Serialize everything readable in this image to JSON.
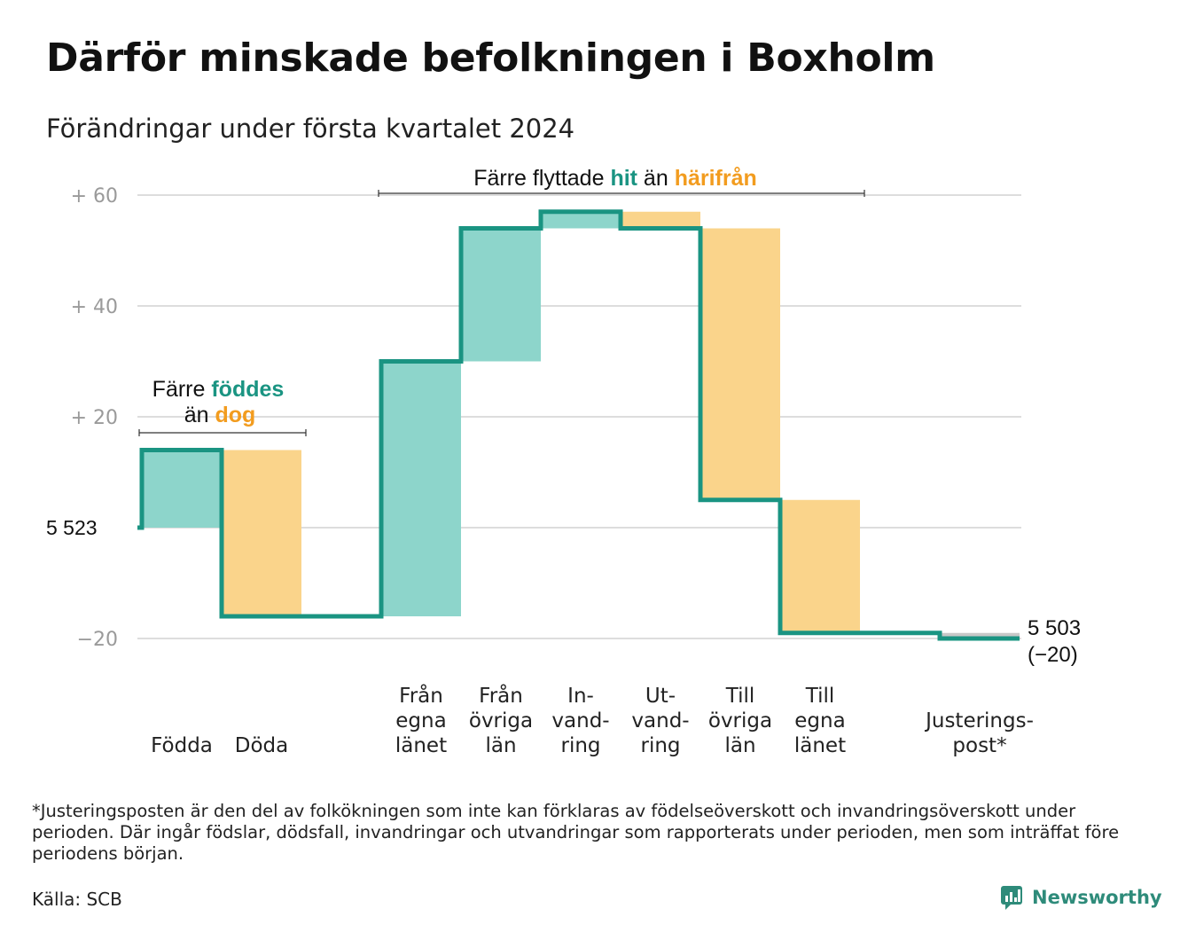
{
  "title": "Därför minskade befolkningen i Boxholm",
  "subtitle": "Förändringar under första kvartalet 2024",
  "footnote": "*Justeringsposten är den del av folkökningen som inte kan förklaras av födelseöverskott och invandringsöverskott under perioden. Där ingår födslar, dödsfall, invandringar och utvandringar som rapporterats under perioden, men som inträffat före periodens början.",
  "source": "Källa: SCB",
  "brand": "Newsworthy",
  "colors": {
    "increase": "#8dd5cb",
    "decrease": "#fad48b",
    "line": "#1a9482",
    "teal_text": "#1a9482",
    "orange_text": "#f29c1f",
    "grid": "#dddddd",
    "tick": "#9a9a9a",
    "adjustment": "#c8c8c8"
  },
  "chart_data": {
    "type": "waterfall",
    "start_label": "5  523",
    "start_value": 5523,
    "end_value": 5503,
    "end_label_line1": "5 503",
    "end_label_line2": "(−20)",
    "ylim": [
      -20,
      60
    ],
    "yticks": [
      {
        "value": 60,
        "label": "+  60"
      },
      {
        "value": 40,
        "label": "+  40"
      },
      {
        "value": 20,
        "label": "+  20"
      },
      {
        "value": 0,
        "label": ""
      },
      {
        "value": -20,
        "label": "−20"
      }
    ],
    "steps": [
      {
        "lines": [
          "Födda"
        ],
        "change": 14
      },
      {
        "lines": [
          "Döda"
        ],
        "change": -30
      },
      {
        "lines": [
          ""
        ],
        "change": 0
      },
      {
        "lines": [
          "Från",
          "egna",
          "länet"
        ],
        "change": 46
      },
      {
        "lines": [
          "Från",
          "övriga",
          "län"
        ],
        "change": 24
      },
      {
        "lines": [
          "In-",
          "vand-",
          "ring"
        ],
        "change": 3
      },
      {
        "lines": [
          "Ut-",
          "vand-",
          "ring"
        ],
        "change": -3
      },
      {
        "lines": [
          "Till",
          "övriga",
          "län"
        ],
        "change": -49
      },
      {
        "lines": [
          "Till",
          "egna",
          "länet"
        ],
        "change": -24
      },
      {
        "lines": [
          ""
        ],
        "change": 0
      },
      {
        "lines": [
          "Justerings-",
          "post*"
        ],
        "change": -1
      }
    ],
    "annotations": [
      {
        "id": "birth",
        "line1": "Färre",
        "line1_hl": "föddes",
        "line2": "än",
        "line2_hl": "dog",
        "from_step": 0,
        "to_step": 1
      },
      {
        "id": "move",
        "text1": "Färre flyttade",
        "hl1": "hit",
        "text2": "än",
        "hl2": "härifrån",
        "from_step": 3,
        "to_step": 8
      }
    ]
  }
}
